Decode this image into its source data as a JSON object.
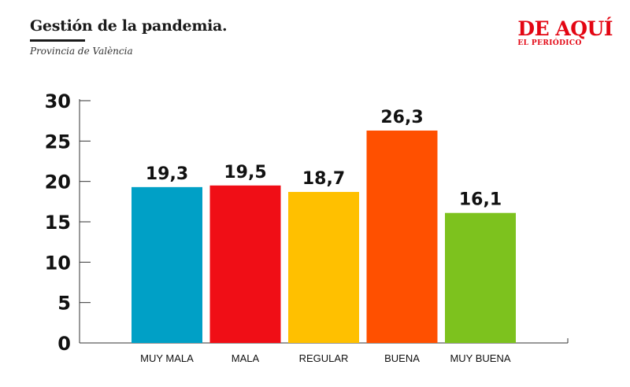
{
  "header": {
    "title": "Gestión de la pandemia.",
    "subtitle": "Provincia de València"
  },
  "brand": {
    "name": "DE AQUÍ",
    "tagline": "EL PERIÓDICO",
    "color": "#e30613"
  },
  "chart_data": {
    "type": "bar",
    "categories": [
      "MUY MALA",
      "MALA",
      "REGULAR",
      "BUENA",
      "MUY BUENA"
    ],
    "values": [
      19.3,
      19.5,
      18.7,
      26.3,
      16.1
    ],
    "value_labels": [
      "19,3",
      "19,5",
      "18,7",
      "26,3",
      "16,1"
    ],
    "colors": [
      "#00a0c6",
      "#f00e16",
      "#ffc000",
      "#ff5000",
      "#7dc21e"
    ],
    "yticks": [
      0,
      5,
      10,
      15,
      20,
      25,
      30
    ],
    "ylim": [
      0,
      30
    ],
    "grid": false,
    "legend": "none"
  }
}
